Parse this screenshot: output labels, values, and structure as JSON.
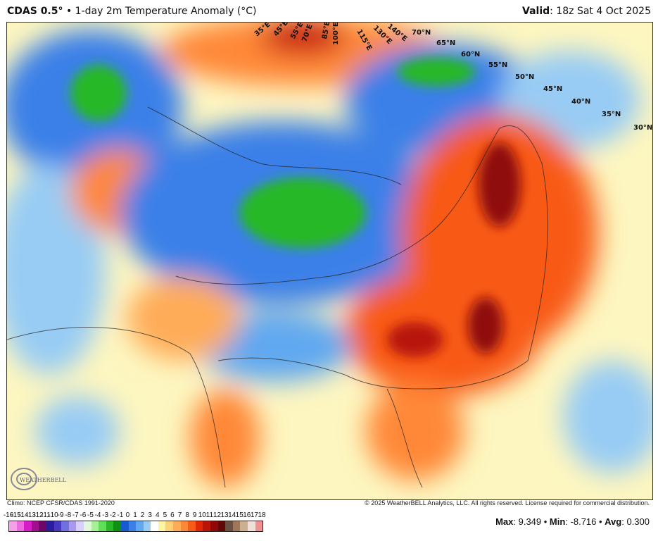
{
  "header": {
    "model": "CDAS 0.5°",
    "separator": "•",
    "product": "1-day 2m Temperature Anomaly (°C)",
    "valid_label": "Valid",
    "valid_value": ": 18z Sat 4 Oct 2025"
  },
  "footer": {
    "climo": "Climo: NCEP CFSR/CDAS 1991-2020",
    "copyright": "© 2025 WeatherBELL Analytics, LLC. All rights reserved. License required for commercial distribution."
  },
  "stats": {
    "max_label": "Max",
    "max": ": 9.349 • ",
    "min_label": "Min",
    "min": ": -8.716 • ",
    "avg_label": "Avg",
    "avg": ": 0.300"
  },
  "logo": "WeatherBELL",
  "map_labels": {
    "lon": [
      "35°E",
      "45°E",
      "55°E",
      "70°E",
      "85°E",
      "100°E",
      "115°E",
      "130°E",
      "140°E"
    ],
    "lat": [
      "70°N",
      "65°N",
      "60°N",
      "55°N",
      "50°N",
      "45°N",
      "40°N",
      "35°N",
      "30°N"
    ]
  },
  "colorbar": {
    "ticks": [
      "-16",
      "-15",
      "-14",
      "-13",
      "-12",
      "-11",
      "-10",
      "-9",
      "-8",
      "-7",
      "-6",
      "-5",
      "-4",
      "-3",
      "-2",
      "-1",
      "0",
      "1",
      "2",
      "3",
      "4",
      "5",
      "6",
      "7",
      "8",
      "9",
      "10",
      "11",
      "12",
      "13",
      "14",
      "15",
      "16",
      "17",
      "18"
    ],
    "colors": [
      "#f6a0ea",
      "#ec6ade",
      "#d81cc8",
      "#a0108e",
      "#6a0a66",
      "#2a1c9c",
      "#4838c0",
      "#7070e0",
      "#a898f0",
      "#d8d0fa",
      "#e2f8dc",
      "#a8f098",
      "#60e058",
      "#28b828",
      "#109010",
      "#1a5ad0",
      "#3a80e8",
      "#60a8f0",
      "#98ccf4",
      "#ffffff",
      "#fff4a0",
      "#ffd078",
      "#ffac58",
      "#ff8838",
      "#f85a18",
      "#e02808",
      "#b81408",
      "#900808",
      "#600808",
      "#6a5040",
      "#a07858",
      "#c8b090",
      "#f0e0d8",
      "#f09090",
      "#c83030"
    ]
  }
}
